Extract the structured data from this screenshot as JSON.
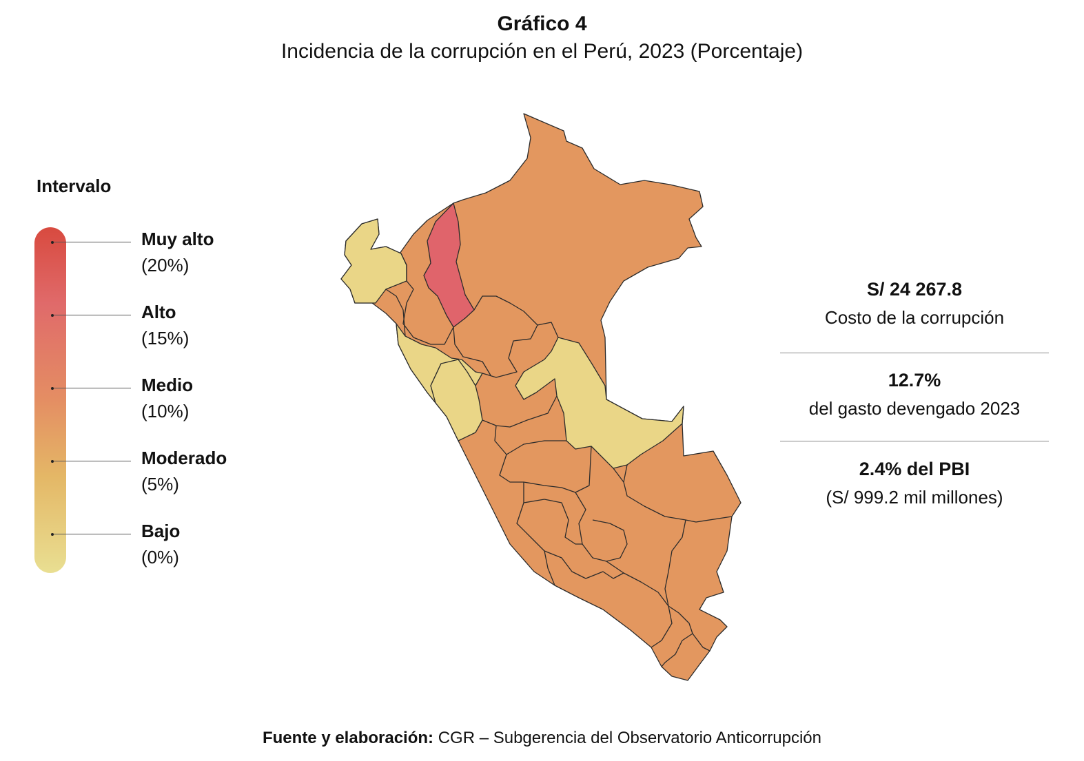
{
  "header": {
    "title": "Gráfico 4",
    "subtitle": "Incidencia de la corrupción en el Perú, 2023 (Porcentaje)"
  },
  "legend": {
    "title": "Intervalo",
    "items": [
      {
        "label": "Muy alto",
        "pct": "(20%)"
      },
      {
        "label": "Alto",
        "pct": "(15%)"
      },
      {
        "label": "Medio",
        "pct": "(10%)"
      },
      {
        "label": "Moderado",
        "pct": "(5%)"
      },
      {
        "label": "Bajo",
        "pct": "(0%)"
      }
    ]
  },
  "colors": {
    "muy_alto": "#d84a3f",
    "alto": "#e0646b",
    "medio": "#e3975f",
    "moderado": "#e4b96a",
    "bajo": "#ead687",
    "border": "#2b2b2b"
  },
  "stats": [
    {
      "big": "S/ 24 267.8",
      "small": "Costo de la corrupción"
    },
    {
      "big": "12.7%",
      "small": "del gasto devengado 2023"
    },
    {
      "big": "2.4% del PBI",
      "small": "(S/ 999.2 mil millones)"
    }
  ],
  "source": {
    "bold": "Fuente y elaboración:",
    "text": " CGR – Subgerencia del Observatorio Anticorrupción"
  }
}
